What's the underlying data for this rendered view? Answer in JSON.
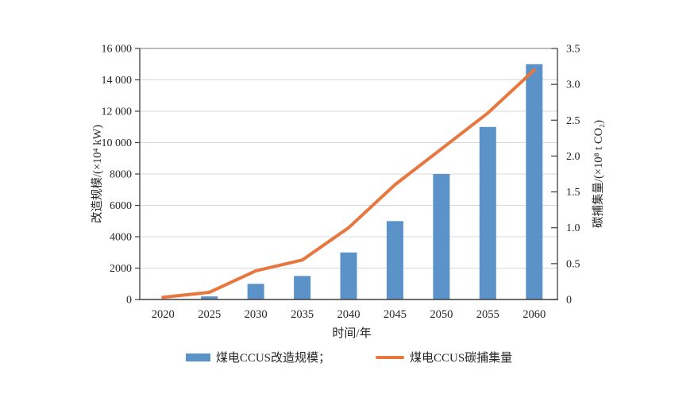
{
  "chart_data": {
    "type": "combo",
    "title": "",
    "categories": [
      "2020",
      "2025",
      "2030",
      "2035",
      "2040",
      "2045",
      "2050",
      "2055",
      "2060"
    ],
    "series": [
      {
        "name": "煤电CCUS改造规模",
        "type": "bar",
        "axis": "left",
        "color": "#5b93c9",
        "values": [
          0,
          200,
          1000,
          1500,
          3000,
          5000,
          8000,
          11000,
          15000
        ]
      },
      {
        "name": "煤电CCUS碳捕集量",
        "type": "line",
        "axis": "right",
        "color": "#e8763f",
        "values": [
          0.03,
          0.1,
          0.4,
          0.55,
          1.0,
          1.6,
          2.1,
          2.6,
          3.2
        ]
      }
    ],
    "xlabel": "时间/年",
    "left_axis": {
      "label": "改造规模/(×10⁴ kW)",
      "min": 0,
      "max": 16000,
      "step": 2000,
      "ticks": [
        "0",
        "2000",
        "4000",
        "6000",
        "8000",
        "10 000",
        "12 000",
        "14 000",
        "16 000"
      ]
    },
    "right_axis": {
      "label": "碳捕集量/(×10⁸ t CO₂)",
      "min": 0,
      "max": 3.5,
      "step": 0.5,
      "ticks": [
        "0",
        "0.5",
        "1.0",
        "1.5",
        "2.0",
        "2.5",
        "3.0",
        "3.5"
      ]
    },
    "grid": "horizontal",
    "legend_position": "bottom",
    "legend": {
      "items": [
        {
          "label": "煤电CCUS改造规模；",
          "swatch": "bar"
        },
        {
          "label": "煤电CCUS碳捕集量",
          "swatch": "line"
        }
      ]
    },
    "colors": {
      "grid": "#d9d9d9",
      "frame": "#7a7a7a",
      "axis": "#3f3f3f",
      "text": "#262626"
    }
  }
}
